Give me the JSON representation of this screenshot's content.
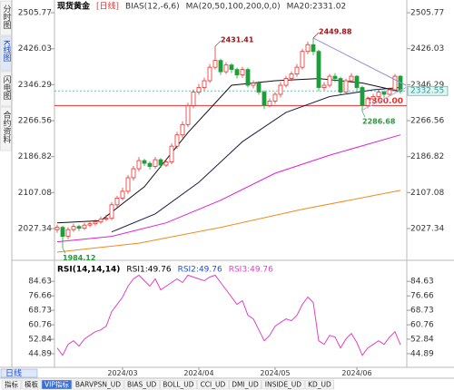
{
  "ui": {
    "sidebar": [
      "分时图",
      "K线图",
      "闪电图",
      "合约资料"
    ],
    "period_tab": "日线",
    "tabs": [
      "指标",
      "模板",
      "VIP指标",
      "BARVPSN_UD",
      "BIAS_UD",
      "BOLL_UD",
      "CCI_UD",
      "DMI_UD",
      "INSIDE_UD",
      "KD_UD"
    ]
  },
  "chart_data": [
    {
      "type": "candlestick",
      "header": [
        "现货黄金",
        "[日线]",
        "BIAS(12,-6,6)",
        "MA(20,50,100,200,0,0)",
        "MA20:2331.02"
      ],
      "header_colors": [
        "#000000",
        "#e8312f",
        "#333333",
        "#333333",
        "#333333"
      ],
      "categories": [
        null,
        null,
        null,
        null,
        null,
        null,
        null,
        null,
        null,
        null,
        null,
        null,
        "2024/03",
        null,
        null,
        null,
        null,
        null,
        null,
        null,
        null,
        null,
        null,
        null,
        null,
        null,
        "2024/04",
        null,
        null,
        null,
        null,
        null,
        null,
        null,
        null,
        null,
        null,
        null,
        null,
        null,
        "2024/05",
        null,
        null,
        null,
        null,
        null,
        null,
        null,
        null,
        null,
        null,
        null,
        null,
        null,
        null,
        "2024/06",
        null,
        null,
        null,
        null,
        null,
        null,
        null,
        null
      ],
      "open": [
        2025,
        2030,
        2010,
        2025,
        2032,
        2028,
        2035,
        2038,
        2042,
        2048,
        2050,
        2080,
        2095,
        2110,
        2140,
        2160,
        2178,
        2172,
        2165,
        2180,
        2168,
        2175,
        2210,
        2235,
        2258,
        2300,
        2330,
        2340,
        2355,
        2385,
        2400,
        2375,
        2390,
        2380,
        2368,
        2380,
        2345,
        2350,
        2330,
        2300,
        2310,
        2325,
        2345,
        2360,
        2370,
        2385,
        2420,
        2435,
        2420,
        2340,
        2345,
        2365,
        2360,
        2330,
        2355,
        2365,
        2340,
        2300,
        2315,
        2320,
        2330,
        2325,
        2335,
        2365
      ],
      "high": [
        2036,
        2034,
        2030,
        2038,
        2036,
        2040,
        2044,
        2048,
        2054,
        2058,
        2086,
        2100,
        2118,
        2146,
        2166,
        2186,
        2182,
        2176,
        2186,
        2184,
        2180,
        2216,
        2242,
        2265,
        2306,
        2336,
        2348,
        2362,
        2392,
        2431.41,
        2404,
        2396,
        2394,
        2384,
        2386,
        2384,
        2356,
        2354,
        2334,
        2316,
        2330,
        2352,
        2366,
        2376,
        2392,
        2426,
        2442,
        2449.88,
        2424,
        2352,
        2370,
        2372,
        2364,
        2360,
        2372,
        2368,
        2344,
        2320,
        2326,
        2336,
        2334,
        2340,
        2370,
        2368
      ],
      "low": [
        2018,
        1984.12,
        2004,
        2020,
        2022,
        2024,
        2030,
        2034,
        2038,
        2044,
        2046,
        2074,
        2090,
        2104,
        2134,
        2154,
        2166,
        2158,
        2160,
        2162,
        2164,
        2170,
        2204,
        2228,
        2252,
        2294,
        2324,
        2334,
        2350,
        2380,
        2368,
        2370,
        2372,
        2360,
        2362,
        2340,
        2338,
        2324,
        2292,
        2296,
        2304,
        2318,
        2340,
        2354,
        2364,
        2380,
        2414,
        2412,
        2332,
        2334,
        2340,
        2352,
        2324,
        2326,
        2350,
        2334,
        2286.68,
        2294,
        2308,
        2314,
        2318,
        2320,
        2330,
        2326
      ],
      "close": [
        2030,
        2010,
        2025,
        2032,
        2028,
        2035,
        2038,
        2042,
        2048,
        2050,
        2080,
        2095,
        2110,
        2140,
        2160,
        2178,
        2172,
        2165,
        2180,
        2168,
        2175,
        2210,
        2235,
        2258,
        2300,
        2330,
        2340,
        2355,
        2385,
        2400,
        2375,
        2390,
        2380,
        2368,
        2380,
        2345,
        2350,
        2330,
        2300,
        2310,
        2325,
        2345,
        2360,
        2370,
        2385,
        2420,
        2435,
        2420,
        2340,
        2345,
        2365,
        2360,
        2330,
        2355,
        2365,
        2340,
        2300,
        2315,
        2320,
        2330,
        2325,
        2335,
        2365,
        2332
      ],
      "up_color": "#e8312f",
      "down_color": "#1f9d3a",
      "ylim": [
        1961,
        2524
      ],
      "yticks": [
        2505.77,
        2426.03,
        2346.29,
        2266.56,
        2186.82,
        2107.08,
        2027.34
      ],
      "lines": [
        {
          "color": "#111111",
          "x": [
            0,
            8,
            16,
            24,
            32,
            40,
            48,
            56,
            63
          ],
          "values": [
            2040,
            2045,
            2120,
            2240,
            2345,
            2355,
            2360,
            2350,
            2331
          ]
        },
        {
          "color": "#1c1c4a",
          "x": [
            10,
            18,
            26,
            34,
            42,
            50,
            58,
            63
          ],
          "values": [
            2020,
            2060,
            2130,
            2220,
            2285,
            2320,
            2335,
            2340
          ]
        },
        {
          "color": "#e020d0",
          "x": [
            0,
            10,
            20,
            30,
            40,
            50,
            63
          ],
          "values": [
            1998,
            2010,
            2040,
            2090,
            2150,
            2190,
            2235
          ]
        },
        {
          "color": "#f08a1c",
          "x": [
            0,
            15,
            30,
            45,
            63
          ],
          "values": [
            1975,
            1995,
            2030,
            2070,
            2112
          ]
        }
      ],
      "trendlines": [
        {
          "color": "#9a8fd8",
          "x": [
            47,
            64
          ],
          "values": [
            2449.88,
            2345
          ]
        },
        {
          "color": "#b9b2e6",
          "x": [
            56,
            64
          ],
          "values": [
            2290,
            2340
          ]
        }
      ],
      "hlines": [
        {
          "value": 2300,
          "label": "2300.00",
          "color": "#e8312f"
        },
        {
          "value": 2332.55,
          "color": "#2aa198",
          "dashed": true
        }
      ],
      "marked_highs": [
        29,
        47
      ],
      "marked_lows": [
        1,
        56
      ],
      "high_label_color": "#a0141a",
      "low_label_color": "#1f9d3a"
    },
    {
      "type": "line",
      "header": [
        "RSI(14,14,14)",
        "RSI1:49.76",
        "RSI2:49.76",
        "RSI3:49.76"
      ],
      "header_colors": [
        "#000000",
        "#000000",
        "#1f4fd0",
        "#e040c8"
      ],
      "series": [
        {
          "color": "#e040c8",
          "values": [
            48,
            44,
            50,
            52,
            49,
            53,
            55,
            57,
            58,
            60,
            68,
            72,
            76,
            82,
            86,
            88,
            85,
            82,
            86,
            80,
            82,
            84,
            86,
            84,
            88,
            87,
            86,
            85,
            87,
            88,
            84,
            80,
            76,
            72,
            74,
            66,
            64,
            58,
            52,
            55,
            60,
            62,
            64,
            63,
            66,
            72,
            76,
            73,
            52,
            50,
            55,
            54,
            48,
            53,
            56,
            51,
            44,
            48,
            50,
            52,
            50,
            54,
            57,
            49.76
          ]
        }
      ],
      "ylim": [
        37.4,
        94.7
      ],
      "yticks": [
        84.63,
        76.66,
        68.73,
        60.76,
        52.84,
        44.89
      ]
    }
  ]
}
